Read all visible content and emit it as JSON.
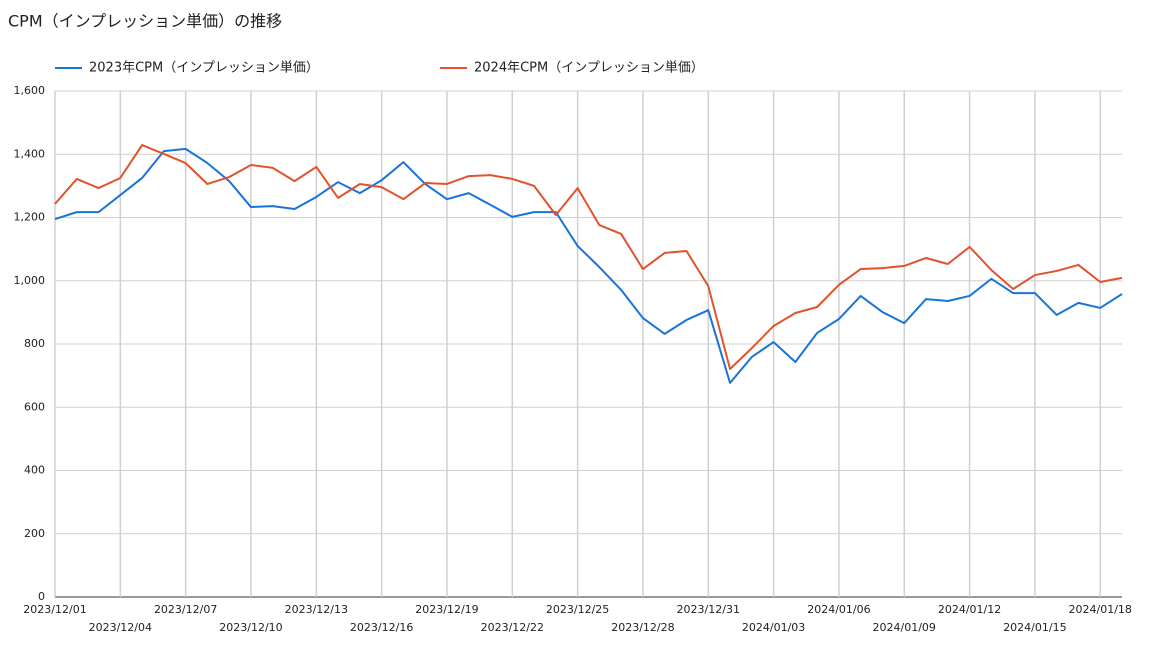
{
  "chart_data": {
    "type": "line",
    "title": "CPM（インプレッション単価）の推移",
    "categories": [
      "2023/12/01",
      null,
      null,
      "2023/12/04",
      null,
      null,
      "2023/12/07",
      null,
      null,
      "2023/12/10",
      null,
      null,
      "2023/12/13",
      null,
      null,
      "2023/12/16",
      null,
      null,
      "2023/12/19",
      null,
      null,
      "2023/12/22",
      null,
      null,
      "2023/12/25",
      null,
      null,
      "2023/12/28",
      null,
      null,
      "2023/12/31",
      null,
      null,
      "2024/01/03",
      null,
      null,
      "2024/01/06",
      null,
      null,
      "2024/01/09",
      null,
      null,
      "2024/01/12",
      null,
      null,
      "2024/01/15",
      null,
      null,
      "2024/01/18",
      null
    ],
    "series": [
      {
        "name": "2023年CPM（インプレッション単価）",
        "color": "#1a73d9",
        "values": [
          1195,
          1217,
          1217,
          1271,
          1325,
          1410,
          1417,
          1372,
          1315,
          1233,
          1236,
          1227,
          1265,
          1312,
          1277,
          1318,
          1375,
          1306,
          1258,
          1277,
          1240,
          1202,
          1217,
          1217,
          1110,
          1043,
          971,
          882,
          832,
          876,
          907,
          677,
          759,
          806,
          743,
          835,
          879,
          952,
          901,
          866,
          942,
          936,
          952,
          1006,
          961,
          961,
          892,
          930,
          914,
          958
        ]
      },
      {
        "name": "2024年CPM（インプレッション単価）",
        "color": "#e2522b",
        "values": [
          1243,
          1322,
          1293,
          1325,
          1429,
          1401,
          1372,
          1306,
          1328,
          1366,
          1357,
          1315,
          1360,
          1262,
          1306,
          1296,
          1258,
          1309,
          1306,
          1331,
          1334,
          1322,
          1300,
          1208,
          1293,
          1176,
          1148,
          1037,
          1088,
          1094,
          983,
          721,
          787,
          857,
          898,
          917,
          987,
          1037,
          1040,
          1047,
          1072,
          1053,
          1107,
          1034,
          974,
          1018,
          1031,
          1050,
          996,
          1009
        ]
      }
    ],
    "ylim": [
      0,
      1600
    ],
    "yticks": [
      0,
      200,
      400,
      600,
      800,
      {
        "value": 1000,
        "label": "1,000"
      },
      {
        "value": 1200,
        "label": "1,200"
      },
      {
        "value": 1400,
        "label": "1,400"
      },
      {
        "value": 1600,
        "label": "1,600"
      }
    ],
    "grid": true
  }
}
